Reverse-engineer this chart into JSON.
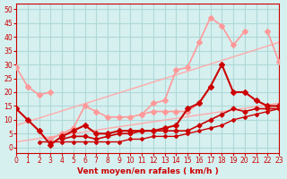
{
  "title": "",
  "xlabel": "Vent moyen/en rafales ( km/h )",
  "ylabel": "",
  "xlim": [
    0,
    23
  ],
  "ylim": [
    -2,
    52
  ],
  "yticks": [
    0,
    5,
    10,
    15,
    20,
    25,
    30,
    35,
    40,
    45,
    50
  ],
  "xticks": [
    0,
    1,
    2,
    3,
    4,
    5,
    6,
    7,
    8,
    9,
    10,
    11,
    12,
    13,
    14,
    15,
    16,
    17,
    18,
    19,
    20,
    21,
    22,
    23
  ],
  "bg_color": "#d6f0f0",
  "grid_color": "#b0d8d8",
  "label_color": "#cc0000",
  "series": [
    {
      "note": "straight diagonal line 1 - lower, light pink, no markers",
      "x": [
        0,
        23
      ],
      "y": [
        2,
        16
      ],
      "color": "#ffaaaa",
      "lw": 1.0,
      "marker": null,
      "ms": 0
    },
    {
      "note": "straight diagonal line 2 - upper, light pink, no markers",
      "x": [
        0,
        23
      ],
      "y": [
        8,
        38
      ],
      "color": "#ffaaaa",
      "lw": 1.0,
      "marker": null,
      "ms": 0
    },
    {
      "note": "light pink curve top - starts high left ~29, dips to 18-20 around x=1-3, then rises to peak ~47 at x=17, then 44,37,42,31",
      "x": [
        0,
        1,
        2,
        3,
        4,
        5,
        6,
        7,
        8,
        9,
        10,
        11,
        12,
        13,
        14,
        15,
        16,
        17,
        18,
        19,
        20,
        21,
        22,
        23
      ],
      "y": [
        29,
        22,
        19,
        20,
        null,
        null,
        null,
        null,
        null,
        null,
        null,
        null,
        null,
        null,
        null,
        null,
        null,
        null,
        null,
        null,
        null,
        null,
        null,
        null
      ],
      "color": "#ff9999",
      "lw": 1.2,
      "marker": "D",
      "ms": 3
    },
    {
      "note": "light pink curve - rises from ~12 at x=11 to ~47 at x=17 then 44,37,42,31",
      "x": [
        11,
        12,
        13,
        14,
        15,
        16,
        17,
        18,
        19,
        20,
        21,
        22,
        23
      ],
      "y": [
        12,
        16,
        17,
        28,
        29,
        38,
        47,
        44,
        37,
        42,
        null,
        42,
        31
      ],
      "color": "#ff9999",
      "lw": 1.2,
      "marker": "D",
      "ms": 3
    },
    {
      "note": "medium pink curve - from x=3 with bump around 5-7 then rises",
      "x": [
        3,
        4,
        5,
        6,
        7,
        8,
        9,
        10,
        11,
        12,
        13,
        14,
        15,
        16,
        17,
        18,
        19,
        20,
        21,
        22,
        23
      ],
      "y": [
        3,
        5,
        7,
        15,
        13,
        11,
        11,
        11,
        12,
        13,
        13,
        13,
        13,
        16,
        22,
        null,
        null,
        null,
        null,
        null,
        null
      ],
      "color": "#ff9999",
      "lw": 1.2,
      "marker": "D",
      "ms": 3
    },
    {
      "note": "dark red main curve - starts 14, dips to 1 at x=3, rises to 30 at x=18",
      "x": [
        0,
        1,
        2,
        3,
        4,
        5,
        6,
        7,
        8,
        9,
        10,
        11,
        12,
        13,
        14,
        15,
        16,
        17,
        18,
        19,
        20,
        21,
        22,
        23
      ],
      "y": [
        14,
        10,
        6,
        1,
        4,
        6,
        8,
        5,
        5,
        6,
        6,
        6,
        6,
        7,
        8,
        14,
        16,
        22,
        30,
        20,
        20,
        17,
        15,
        15
      ],
      "color": "#cc0000",
      "lw": 1.5,
      "marker": "D",
      "ms": 3
    },
    {
      "note": "dark red lower curve - gradual rise from x=4",
      "x": [
        4,
        5,
        6,
        7,
        8,
        9,
        10,
        11,
        12,
        13,
        14,
        15,
        16,
        17,
        18,
        19,
        20,
        21,
        22,
        23
      ],
      "y": [
        3,
        4,
        4,
        3,
        4,
        5,
        5,
        6,
        6,
        6,
        6,
        6,
        8,
        10,
        12,
        14,
        13,
        14,
        14,
        14
      ],
      "color": "#cc0000",
      "lw": 1.2,
      "marker": "D",
      "ms": 2.5
    },
    {
      "note": "dark red bottom curve - very gradual rise",
      "x": [
        2,
        3,
        4,
        5,
        6,
        7,
        8,
        9,
        10,
        11,
        12,
        13,
        14,
        15,
        16,
        17,
        18,
        19,
        20,
        21,
        22,
        23
      ],
      "y": [
        2,
        2,
        2,
        2,
        2,
        2,
        2,
        2,
        3,
        3,
        4,
        4,
        4,
        5,
        6,
        7,
        8,
        10,
        11,
        12,
        13,
        14
      ],
      "color": "#cc0000",
      "lw": 1.0,
      "marker": "D",
      "ms": 2
    }
  ]
}
